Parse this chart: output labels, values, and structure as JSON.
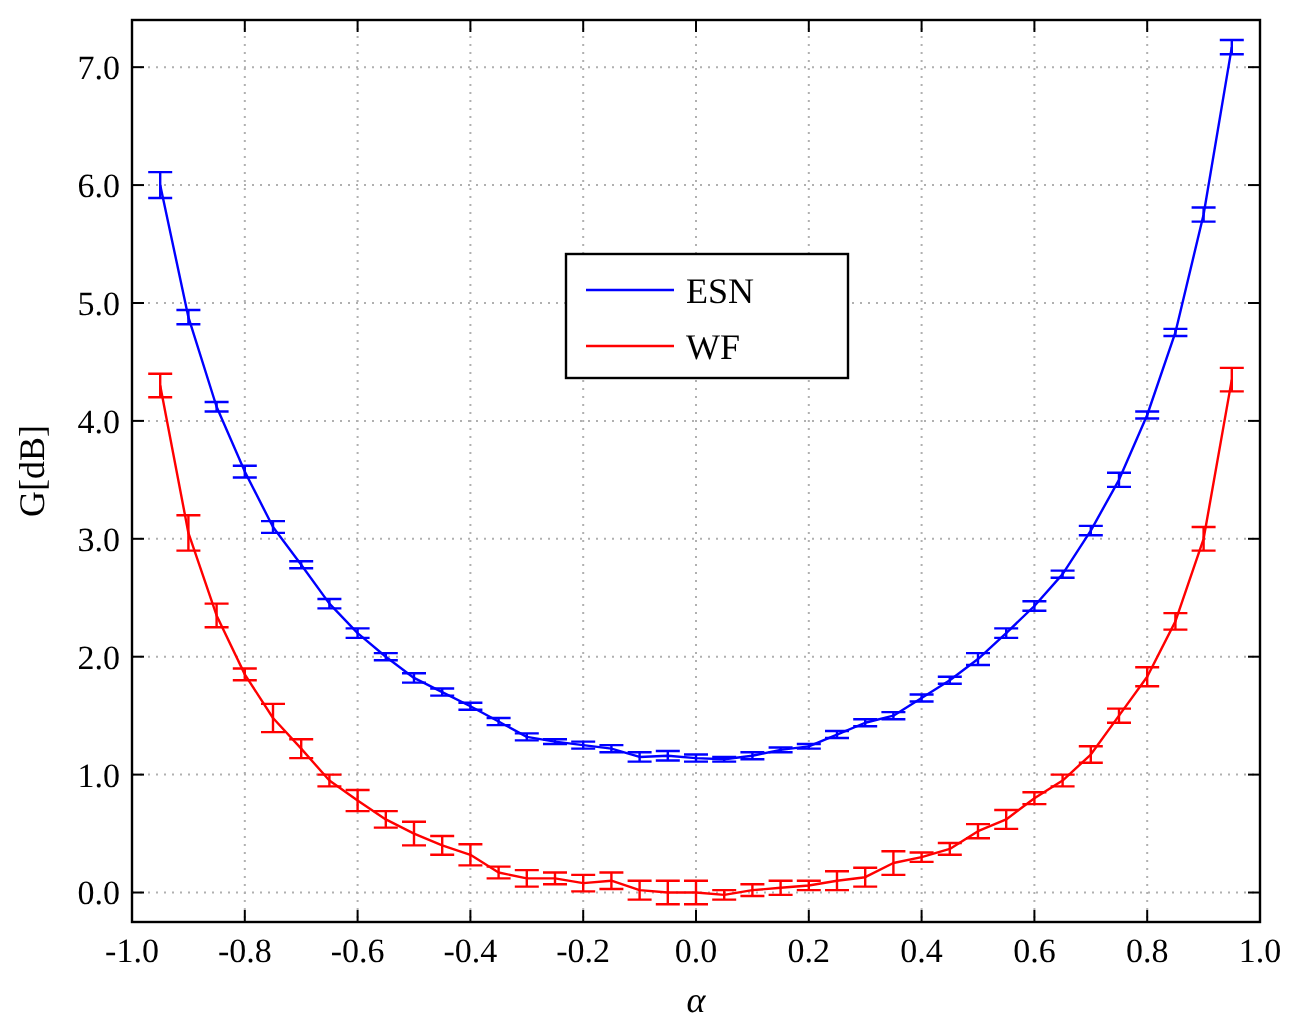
{
  "chart_data": {
    "type": "line",
    "xlabel": "α",
    "ylabel": "G[dB]",
    "x": [
      -0.95,
      -0.9,
      -0.85,
      -0.8,
      -0.75,
      -0.7,
      -0.65,
      -0.6,
      -0.55,
      -0.5,
      -0.45,
      -0.4,
      -0.35,
      -0.3,
      -0.25,
      -0.2,
      -0.15,
      -0.1,
      -0.05,
      0.0,
      0.05,
      0.1,
      0.15,
      0.2,
      0.25,
      0.3,
      0.35,
      0.4,
      0.45,
      0.5,
      0.55,
      0.6,
      0.65,
      0.7,
      0.75,
      0.8,
      0.85,
      0.9,
      0.95
    ],
    "series": [
      {
        "name": "ESN",
        "color": "#0000ff",
        "values": [
          6.0,
          4.88,
          4.12,
          3.57,
          3.1,
          2.78,
          2.45,
          2.2,
          2.0,
          1.82,
          1.7,
          1.58,
          1.45,
          1.32,
          1.28,
          1.25,
          1.22,
          1.15,
          1.16,
          1.14,
          1.13,
          1.16,
          1.21,
          1.24,
          1.34,
          1.44,
          1.5,
          1.65,
          1.8,
          1.98,
          2.2,
          2.43,
          2.7,
          3.07,
          3.5,
          4.05,
          4.75,
          5.75,
          7.17
        ],
        "errors": [
          0.11,
          0.06,
          0.04,
          0.05,
          0.05,
          0.03,
          0.04,
          0.04,
          0.03,
          0.04,
          0.03,
          0.03,
          0.03,
          0.03,
          0.02,
          0.03,
          0.03,
          0.04,
          0.04,
          0.03,
          0.02,
          0.03,
          0.02,
          0.02,
          0.03,
          0.03,
          0.03,
          0.03,
          0.03,
          0.05,
          0.04,
          0.04,
          0.03,
          0.04,
          0.06,
          0.03,
          0.03,
          0.06,
          0.06
        ]
      },
      {
        "name": "WF",
        "color": "#ff0000",
        "values": [
          4.3,
          3.05,
          2.35,
          1.85,
          1.48,
          1.22,
          0.95,
          0.78,
          0.62,
          0.5,
          0.4,
          0.32,
          0.17,
          0.12,
          0.12,
          0.08,
          0.1,
          0.02,
          0.0,
          0.0,
          -0.02,
          0.02,
          0.04,
          0.06,
          0.1,
          0.13,
          0.25,
          0.3,
          0.37,
          0.52,
          0.62,
          0.8,
          0.95,
          1.17,
          1.5,
          1.83,
          2.3,
          3.0,
          4.35
        ],
        "errors": [
          0.1,
          0.15,
          0.1,
          0.05,
          0.12,
          0.08,
          0.05,
          0.09,
          0.07,
          0.1,
          0.08,
          0.09,
          0.05,
          0.07,
          0.05,
          0.07,
          0.07,
          0.08,
          0.1,
          0.1,
          0.04,
          0.05,
          0.06,
          0.04,
          0.08,
          0.08,
          0.1,
          0.04,
          0.05,
          0.06,
          0.08,
          0.05,
          0.05,
          0.07,
          0.06,
          0.08,
          0.07,
          0.1,
          0.1
        ]
      }
    ],
    "xlim": [
      -1.0,
      1.0
    ],
    "xticks": [
      {
        "value": -1,
        "label": "-1.0"
      },
      {
        "value": -0.8,
        "label": "-0.8"
      },
      {
        "value": -0.6,
        "label": "-0.6"
      },
      {
        "value": -0.4,
        "label": "-0.4"
      },
      {
        "value": -0.2,
        "label": "-0.2"
      },
      {
        "value": 0,
        "label": "0.0"
      },
      {
        "value": 0.2,
        "label": "0.2"
      },
      {
        "value": 0.4,
        "label": "0.4"
      },
      {
        "value": 0.6,
        "label": "0.6"
      },
      {
        "value": 0.8,
        "label": "0.8"
      },
      {
        "value": 1,
        "label": "1.0"
      }
    ],
    "ylim": [
      -0.25,
      7.4
    ],
    "yticks": [
      {
        "value": 0,
        "label": "0.0"
      },
      {
        "value": 1,
        "label": "1.0"
      },
      {
        "value": 2,
        "label": "2.0"
      },
      {
        "value": 3,
        "label": "3.0"
      },
      {
        "value": 4,
        "label": "4.0"
      },
      {
        "value": 5,
        "label": "5.0"
      },
      {
        "value": 6,
        "label": "6.0"
      },
      {
        "value": 7,
        "label": "7.0"
      }
    ],
    "grid": true,
    "legend": "top",
    "line_style": "solid"
  }
}
